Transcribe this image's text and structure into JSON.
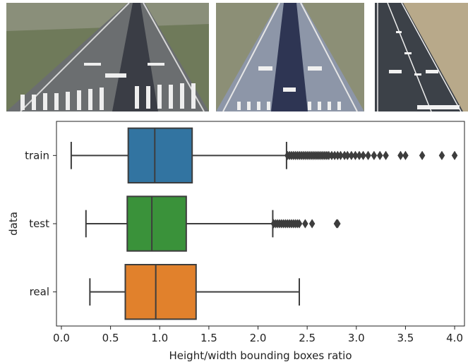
{
  "photos": [
    {
      "subject": "runway-photo-1"
    },
    {
      "subject": "runway-photo-2"
    },
    {
      "subject": "runway-photo-3"
    }
  ],
  "chart_data": {
    "type": "box",
    "orientation": "horizontal",
    "title": "",
    "xlabel": "Height/width bounding boxes ratio",
    "ylabel": "data",
    "xlim": [
      -0.05,
      4.1
    ],
    "xticks": [
      0.0,
      0.5,
      1.0,
      1.5,
      2.0,
      2.5,
      3.0,
      3.5,
      4.0
    ],
    "xtick_labels": [
      "0.0",
      "0.5",
      "1.0",
      "1.5",
      "2.0",
      "2.5",
      "3.0",
      "3.5",
      "4.0"
    ],
    "grid": false,
    "legend": "none",
    "categories": [
      "train",
      "test",
      "real"
    ],
    "boxes": [
      {
        "category": "train",
        "color": "#3274a1",
        "whisker_low": 0.1,
        "q1": 0.68,
        "median": 0.95,
        "q3": 1.33,
        "whisker_high": 2.29,
        "outliers": [
          2.3,
          2.32,
          2.34,
          2.36,
          2.38,
          2.4,
          2.42,
          2.44,
          2.46,
          2.48,
          2.5,
          2.52,
          2.54,
          2.56,
          2.58,
          2.6,
          2.62,
          2.64,
          2.66,
          2.68,
          2.7,
          2.72,
          2.75,
          2.78,
          2.81,
          2.84,
          2.88,
          2.91,
          2.95,
          2.99,
          3.03,
          3.07,
          3.12,
          3.18,
          3.24,
          3.3,
          3.45,
          3.5,
          3.67,
          3.87,
          4.0
        ]
      },
      {
        "category": "test",
        "color": "#3a923a",
        "whisker_low": 0.25,
        "q1": 0.67,
        "median": 0.92,
        "q3": 1.27,
        "whisker_high": 2.15,
        "outliers": [
          2.16,
          2.18,
          2.2,
          2.22,
          2.24,
          2.26,
          2.28,
          2.3,
          2.32,
          2.34,
          2.36,
          2.38,
          2.4,
          2.42,
          2.48,
          2.55,
          2.8,
          2.81
        ]
      },
      {
        "category": "real",
        "color": "#e1812c",
        "whisker_low": 0.29,
        "q1": 0.65,
        "median": 0.96,
        "q3": 1.37,
        "whisker_high": 2.42,
        "outliers": []
      }
    ]
  }
}
